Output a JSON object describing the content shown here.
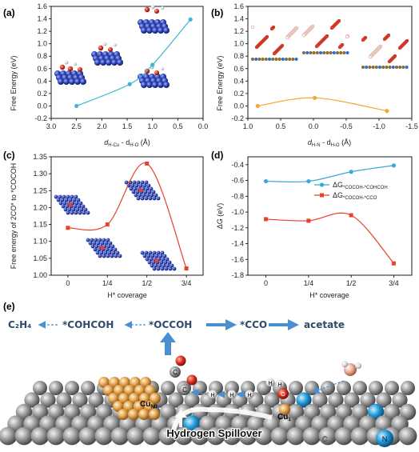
{
  "chart_data": [
    {
      "panel": "(a)",
      "type": "line",
      "xlabel": "d",
      "xlabel_sub1": "H-Cu",
      "xlabel_mid": " - d",
      "xlabel_sub2": "H-O",
      "xlabel_unit": " (Å)",
      "ylabel": "Free Energy (eV)",
      "xlim": [
        3.0,
        0.0
      ],
      "ylim": [
        -0.2,
        1.6
      ],
      "xticks": [
        "3.0",
        "2.5",
        "2.0",
        "1.5",
        "1.0",
        "0.5",
        "0.0"
      ],
      "yticks": [
        "-0.2",
        "0.0",
        "0.2",
        "0.4",
        "0.6",
        "0.8",
        "1.0",
        "1.2",
        "1.4",
        "1.6"
      ],
      "color": "#3bb5d8",
      "x": [
        2.5,
        1.45,
        1.0,
        0.25
      ],
      "y": [
        0.0,
        0.35,
        0.66,
        1.39
      ]
    },
    {
      "panel": "(b)",
      "type": "line",
      "xlabel": "d",
      "xlabel_sub1": "H-N",
      "xlabel_mid": " - d",
      "xlabel_sub2": "H-O",
      "xlabel_unit": " (Å)",
      "ylabel": "Free Energy (eV)",
      "xlim": [
        1.0,
        -1.5
      ],
      "ylim": [
        -0.2,
        1.6
      ],
      "xticks": [
        "1.0",
        "0.5",
        "0.0",
        "-0.5",
        "-1.0",
        "-1.5"
      ],
      "yticks": [
        "-0.2",
        "0.0",
        "0.2",
        "0.4",
        "0.6",
        "0.8",
        "1.0",
        "1.2",
        "1.4",
        "1.6"
      ],
      "color": "#f0a830",
      "x": [
        0.85,
        -0.02,
        -1.12
      ],
      "y": [
        0.0,
        0.13,
        -0.08
      ]
    },
    {
      "panel": "(c)",
      "type": "line",
      "xlabel": "H* coverage",
      "ylabel": "Free energy of 2CO* to *COCOH",
      "categories": [
        "0",
        "1/4",
        "1/2",
        "3/4"
      ],
      "ylim": [
        1.0,
        1.35
      ],
      "yticks": [
        "1.00",
        "1.05",
        "1.10",
        "1.15",
        "1.20",
        "1.25",
        "1.30",
        "1.35"
      ],
      "color": "#e8412c",
      "values": [
        1.14,
        1.15,
        1.33,
        1.02
      ]
    },
    {
      "panel": "(d)",
      "type": "line",
      "xlabel": "H* coverage",
      "ylabel": "ΔG (eV)",
      "categories": [
        "0",
        "1/4",
        "1/2",
        "3/4"
      ],
      "ylim": [
        -1.8,
        -0.3
      ],
      "yticks": [
        "-0.4",
        "-0.6",
        "-0.8",
        "-1.0",
        "-1.2",
        "-1.4",
        "-1.6",
        "-1.8"
      ],
      "series": [
        {
          "name_main": "ΔG",
          "name_sub": "*COCOH-*COHCOH",
          "color": "#3aa8d8",
          "marker": "circle",
          "values": [
            -0.61,
            -0.61,
            -0.49,
            -0.41
          ]
        },
        {
          "name_main": "ΔG",
          "name_sub": "*COCOH-*CCO",
          "color": "#e8412c",
          "marker": "square",
          "values": [
            -1.09,
            -1.11,
            -1.04,
            -1.65
          ]
        }
      ]
    }
  ],
  "panel_e": {
    "label": "(e)",
    "flow": {
      "c2h4": "C₂H₄",
      "cohcoh": "*COHCOH",
      "occcoh": "*OCCOH",
      "cco": "*CCO",
      "acetate": "acetate"
    },
    "spillover": "Hydrogen Spillover",
    "cu_nb": "Cu",
    "cu_nb_sub": "NB",
    "cu_1": "Cu",
    "cu_1_sub": "1",
    "atom_c": "C",
    "atom_n": "N",
    "atom_h": "H",
    "atom_o": "O"
  }
}
